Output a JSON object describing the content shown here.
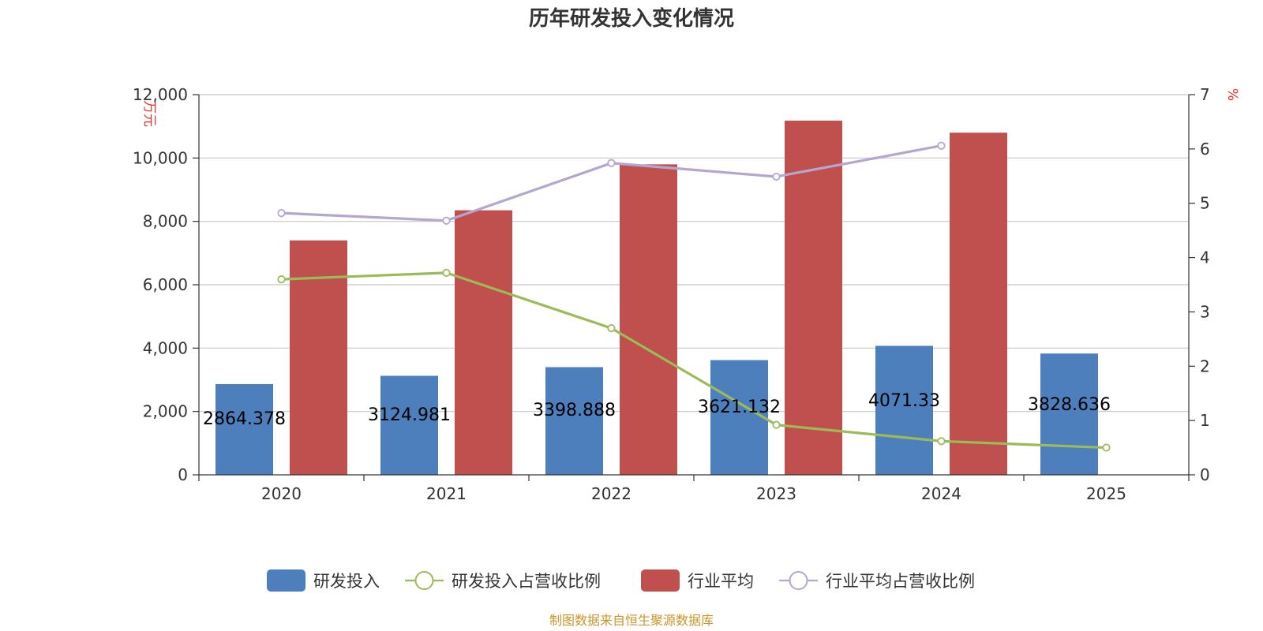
{
  "chart_data": {
    "type": "bar",
    "title": "历年研发投入变化情况",
    "categories": [
      "2020",
      "2021",
      "2022",
      "2023",
      "2024",
      "2025"
    ],
    "y_left": {
      "unit_label": "万元",
      "min": 0,
      "max": 12000,
      "ticks": [
        "0",
        "2,000",
        "4,000",
        "6,000",
        "8,000",
        "10,000",
        "12,000"
      ]
    },
    "y_right": {
      "unit_label": "%",
      "min": 0,
      "max": 7,
      "ticks": [
        "0",
        "1",
        "2",
        "3",
        "4",
        "5",
        "6",
        "7"
      ]
    },
    "grid": true,
    "legend_position": "bottom",
    "series": [
      {
        "name": "研发投入",
        "kind": "bar",
        "axis": "left",
        "color": "#4e7fbd",
        "values": [
          2864.378,
          3124.981,
          3398.888,
          3621.132,
          4071.33,
          3828.636
        ],
        "labels": [
          "2864.378",
          "3124.981",
          "3398.888",
          "3621.132",
          "4071.33",
          "3828.636"
        ]
      },
      {
        "name": "研发投入占营收比例",
        "kind": "line",
        "axis": "right",
        "color": "#9bbb59",
        "values": [
          3.6,
          3.72,
          2.7,
          0.92,
          0.62,
          0.5
        ]
      },
      {
        "name": "行业平均",
        "kind": "bar",
        "axis": "left",
        "color": "#c0504d",
        "values": [
          7400,
          8350,
          9800,
          11180,
          10800,
          null
        ]
      },
      {
        "name": "行业平均占营收比例",
        "kind": "line",
        "axis": "right",
        "color": "#b3a6cf",
        "values": [
          4.82,
          4.68,
          5.74,
          5.49,
          6.06,
          null
        ]
      }
    ]
  },
  "footer": {
    "source": "制图数据来自恒生聚源数据库"
  }
}
